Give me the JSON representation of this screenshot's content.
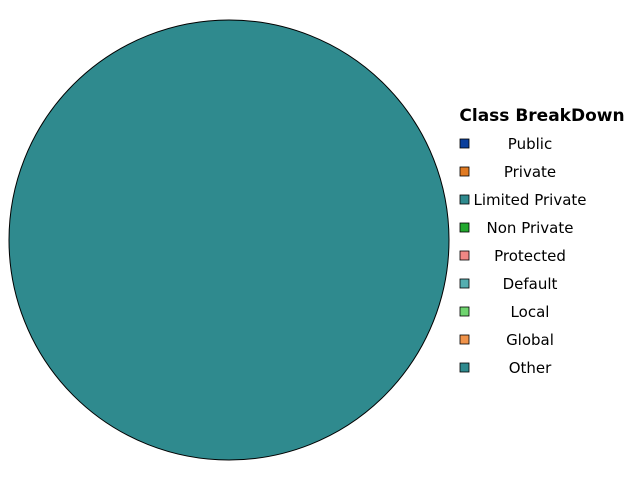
{
  "chart_data": {
    "type": "pie",
    "title": "",
    "legend": {
      "title": "Class BreakDown",
      "placement": "right"
    },
    "categories": [
      "Public",
      "Private",
      "Limited Private",
      "Non Private",
      "Protected",
      "Default",
      "Local",
      "Global",
      "Other"
    ],
    "values": [
      0,
      0,
      100,
      0,
      0,
      0,
      0,
      0,
      0
    ],
    "colors": [
      "#0b3f9c",
      "#e07a22",
      "#2f8a8e",
      "#22a82e",
      "#f08784",
      "#55aeb0",
      "#6fd46f",
      "#f0934a",
      "#2f8a8e"
    ],
    "slice_stroke": "#000000"
  }
}
